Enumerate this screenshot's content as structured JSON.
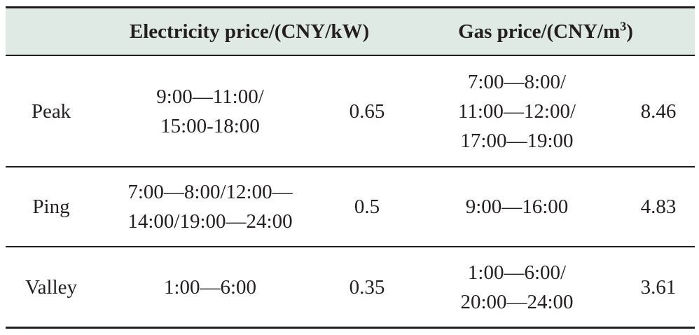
{
  "table": {
    "headers": {
      "electricity": "Electricity price/(CNY/kW)",
      "gas_prefix": "Gas price/(CNY/m",
      "gas_sup": "3",
      "gas_suffix": ")"
    },
    "rows": [
      {
        "label": "Peak",
        "elec_period_lines": [
          "9:00—11:00/",
          "15:00-18:00"
        ],
        "elec_price": "0.65",
        "gas_period_lines": [
          "7:00—8:00/",
          "11:00—12:00/",
          "17:00—19:00"
        ],
        "gas_price": "8.46"
      },
      {
        "label": "Ping",
        "elec_period_lines": [
          "7:00—8:00/12:00—",
          "14:00/19:00—24:00"
        ],
        "elec_price": "0.5",
        "gas_period_lines": [
          "9:00—16:00"
        ],
        "gas_price": "4.83"
      },
      {
        "label": "Valley",
        "elec_period_lines": [
          "1:00—6:00"
        ],
        "elec_price": "0.35",
        "gas_period_lines": [
          "1:00—6:00/",
          "20:00—24:00"
        ],
        "gas_price": "3.61"
      }
    ]
  }
}
